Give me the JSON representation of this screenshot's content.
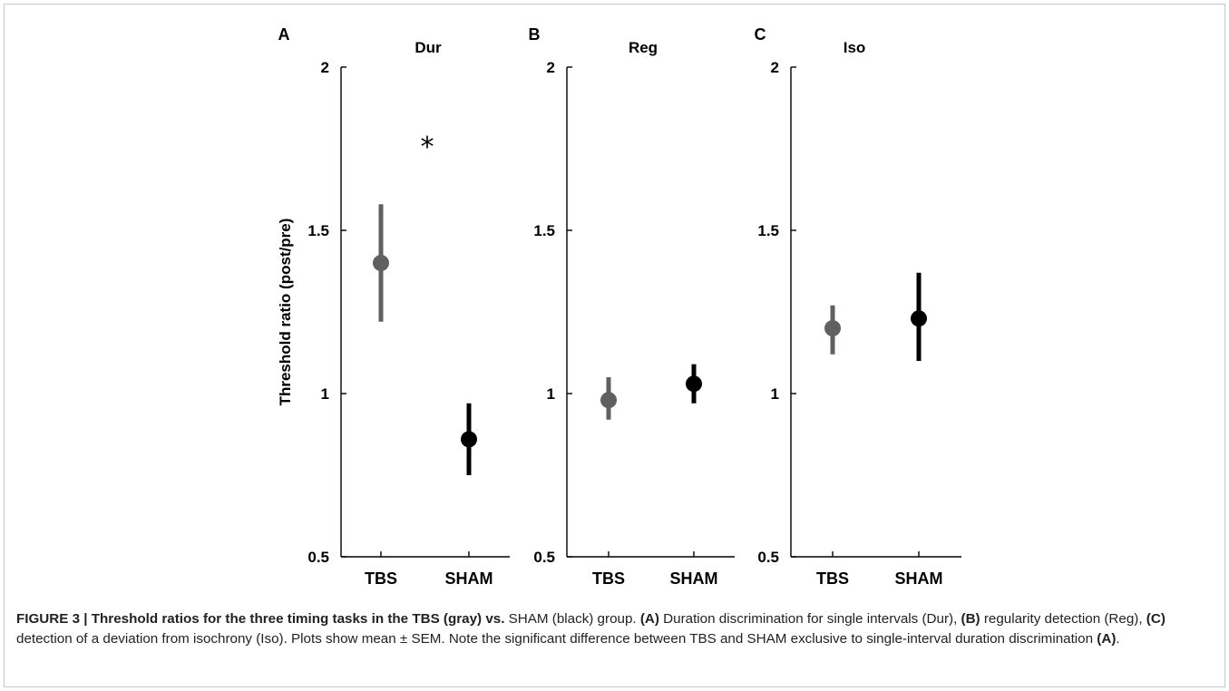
{
  "chart_data": [
    {
      "type": "scatter",
      "panel_letter": "A",
      "title": "Dur",
      "ylabel": "Threshold ratio (post/pre)",
      "ylim": [
        0.5,
        2
      ],
      "yticks": [
        "0.5",
        "1",
        "1.5",
        "2"
      ],
      "categories": [
        "TBS",
        "SHAM"
      ],
      "series": [
        {
          "category": "TBS",
          "mean": 1.4,
          "sem_low": 1.22,
          "sem_high": 1.58,
          "color": "#606060"
        },
        {
          "category": "SHAM",
          "mean": 0.86,
          "sem_low": 0.75,
          "sem_high": 0.97,
          "color": "#000000"
        }
      ],
      "annotation": "*"
    },
    {
      "type": "scatter",
      "panel_letter": "B",
      "title": "Reg",
      "ylim": [
        0.5,
        2
      ],
      "yticks": [
        "0.5",
        "1",
        "1.5",
        "2"
      ],
      "categories": [
        "TBS",
        "SHAM"
      ],
      "series": [
        {
          "category": "TBS",
          "mean": 0.98,
          "sem_low": 0.92,
          "sem_high": 1.05,
          "color": "#606060"
        },
        {
          "category": "SHAM",
          "mean": 1.03,
          "sem_low": 0.97,
          "sem_high": 1.09,
          "color": "#000000"
        }
      ]
    },
    {
      "type": "scatter",
      "panel_letter": "C",
      "title": "Iso",
      "ylim": [
        0.5,
        2
      ],
      "yticks": [
        "0.5",
        "1",
        "1.5",
        "2"
      ],
      "categories": [
        "TBS",
        "SHAM"
      ],
      "series": [
        {
          "category": "TBS",
          "mean": 1.2,
          "sem_low": 1.12,
          "sem_high": 1.27,
          "color": "#606060"
        },
        {
          "category": "SHAM",
          "mean": 1.23,
          "sem_low": 1.1,
          "sem_high": 1.37,
          "color": "#000000"
        }
      ]
    }
  ],
  "caption": {
    "label": "FIGURE 3 | ",
    "bold_lead": "Threshold ratios for the three timing tasks in the TBS (gray) vs.",
    "t1": " SHAM (black) group. ",
    "ref_a": "(A)",
    "t2": " Duration discrimination for single intervals (Dur), ",
    "ref_b": "(B)",
    "t3": " regularity detection (Reg), ",
    "ref_c": "(C)",
    "t4": " detection of a deviation from isochrony (Iso). Plots show mean ± SEM. Note the significant difference between TBS and SHAM exclusive to single-interval duration discrimination ",
    "ref_a2": "(A)",
    "t5": "."
  }
}
